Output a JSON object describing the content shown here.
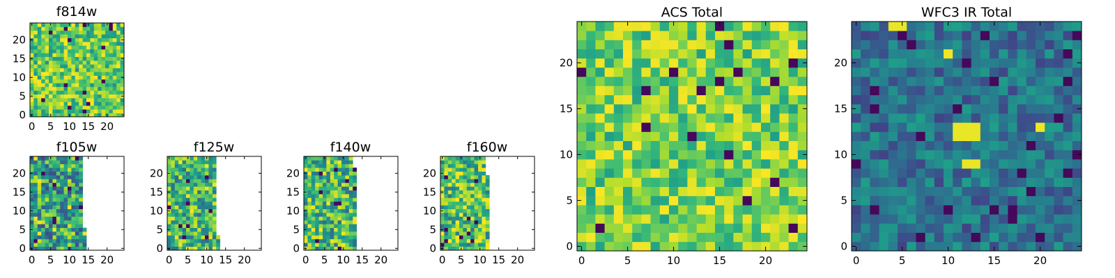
{
  "chart_data": [
    {
      "type": "heatmap",
      "title": "f814w",
      "size": 25,
      "col_limit": 25,
      "x_ticks": [
        0,
        5,
        10,
        15,
        20
      ],
      "y_ticks": [
        0,
        5,
        10,
        15,
        20
      ],
      "seed": 11,
      "base": 0.75,
      "spread": 0.25,
      "dark_prob": 0.03,
      "hot_prob": 0.03
    },
    {
      "type": "heatmap",
      "title": "f105w",
      "size": 25,
      "col_limit": 14,
      "row_cut": 6,
      "x_ticks": [
        0,
        5,
        10,
        15,
        20
      ],
      "y_ticks": [
        0,
        5,
        10,
        15,
        20
      ],
      "seed": 21,
      "base": 0.58,
      "spread": 0.35,
      "dark_prob": 0.03,
      "hot_prob": 0.04
    },
    {
      "type": "heatmap",
      "title": "f125w",
      "size": 25,
      "col_limit": 13,
      "row_cut": 4,
      "x_ticks": [
        0,
        5,
        10,
        15,
        20
      ],
      "y_ticks": [
        0,
        5,
        10,
        15,
        20
      ],
      "seed": 31,
      "base": 0.65,
      "spread": 0.3,
      "dark_prob": 0.02,
      "hot_prob": 0.04
    },
    {
      "type": "heatmap",
      "title": "f140w",
      "size": 25,
      "col_limit": 13,
      "row_cut": 22,
      "x_ticks": [
        0,
        5,
        10,
        15,
        20
      ],
      "y_ticks": [
        0,
        5,
        10,
        15,
        20
      ],
      "seed": 41,
      "base": 0.65,
      "spread": 0.3,
      "dark_prob": 0.03,
      "hot_prob": 0.05
    },
    {
      "type": "heatmap",
      "title": "f160w",
      "size": 25,
      "col_limit": 12,
      "row_cut": 20,
      "x_ticks": [
        0,
        5,
        10,
        15,
        20
      ],
      "y_ticks": [
        0,
        5,
        10,
        15,
        20
      ],
      "seed": 51,
      "base": 0.7,
      "spread": 0.3,
      "dark_prob": 0.03,
      "hot_prob": 0.05
    },
    {
      "type": "heatmap",
      "title": "ACS Total",
      "size": 25,
      "col_limit": 25,
      "x_ticks": [
        0,
        5,
        10,
        15,
        20
      ],
      "y_ticks": [
        0,
        5,
        10,
        15,
        20
      ],
      "seed": 61,
      "base": 0.78,
      "spread": 0.22,
      "dark_prob": 0.025,
      "hot_prob": 0.06
    },
    {
      "type": "heatmap",
      "title": "WFC3 IR Total",
      "size": 25,
      "col_limit": 25,
      "x_ticks": [
        0,
        5,
        10,
        15,
        20
      ],
      "y_ticks": [
        0,
        5,
        10,
        15,
        20
      ],
      "seed": 71,
      "base": 0.38,
      "spread": 0.18,
      "dark_prob": 0.035,
      "hot_prob": 0.005,
      "hot_cells": [
        [
          11,
          13
        ],
        [
          12,
          13
        ],
        [
          13,
          13
        ],
        [
          11,
          12
        ],
        [
          12,
          12
        ],
        [
          13,
          12
        ],
        [
          12,
          9
        ],
        [
          13,
          9
        ],
        [
          4,
          24
        ],
        [
          5,
          24
        ]
      ]
    }
  ],
  "colormap": "viridis"
}
